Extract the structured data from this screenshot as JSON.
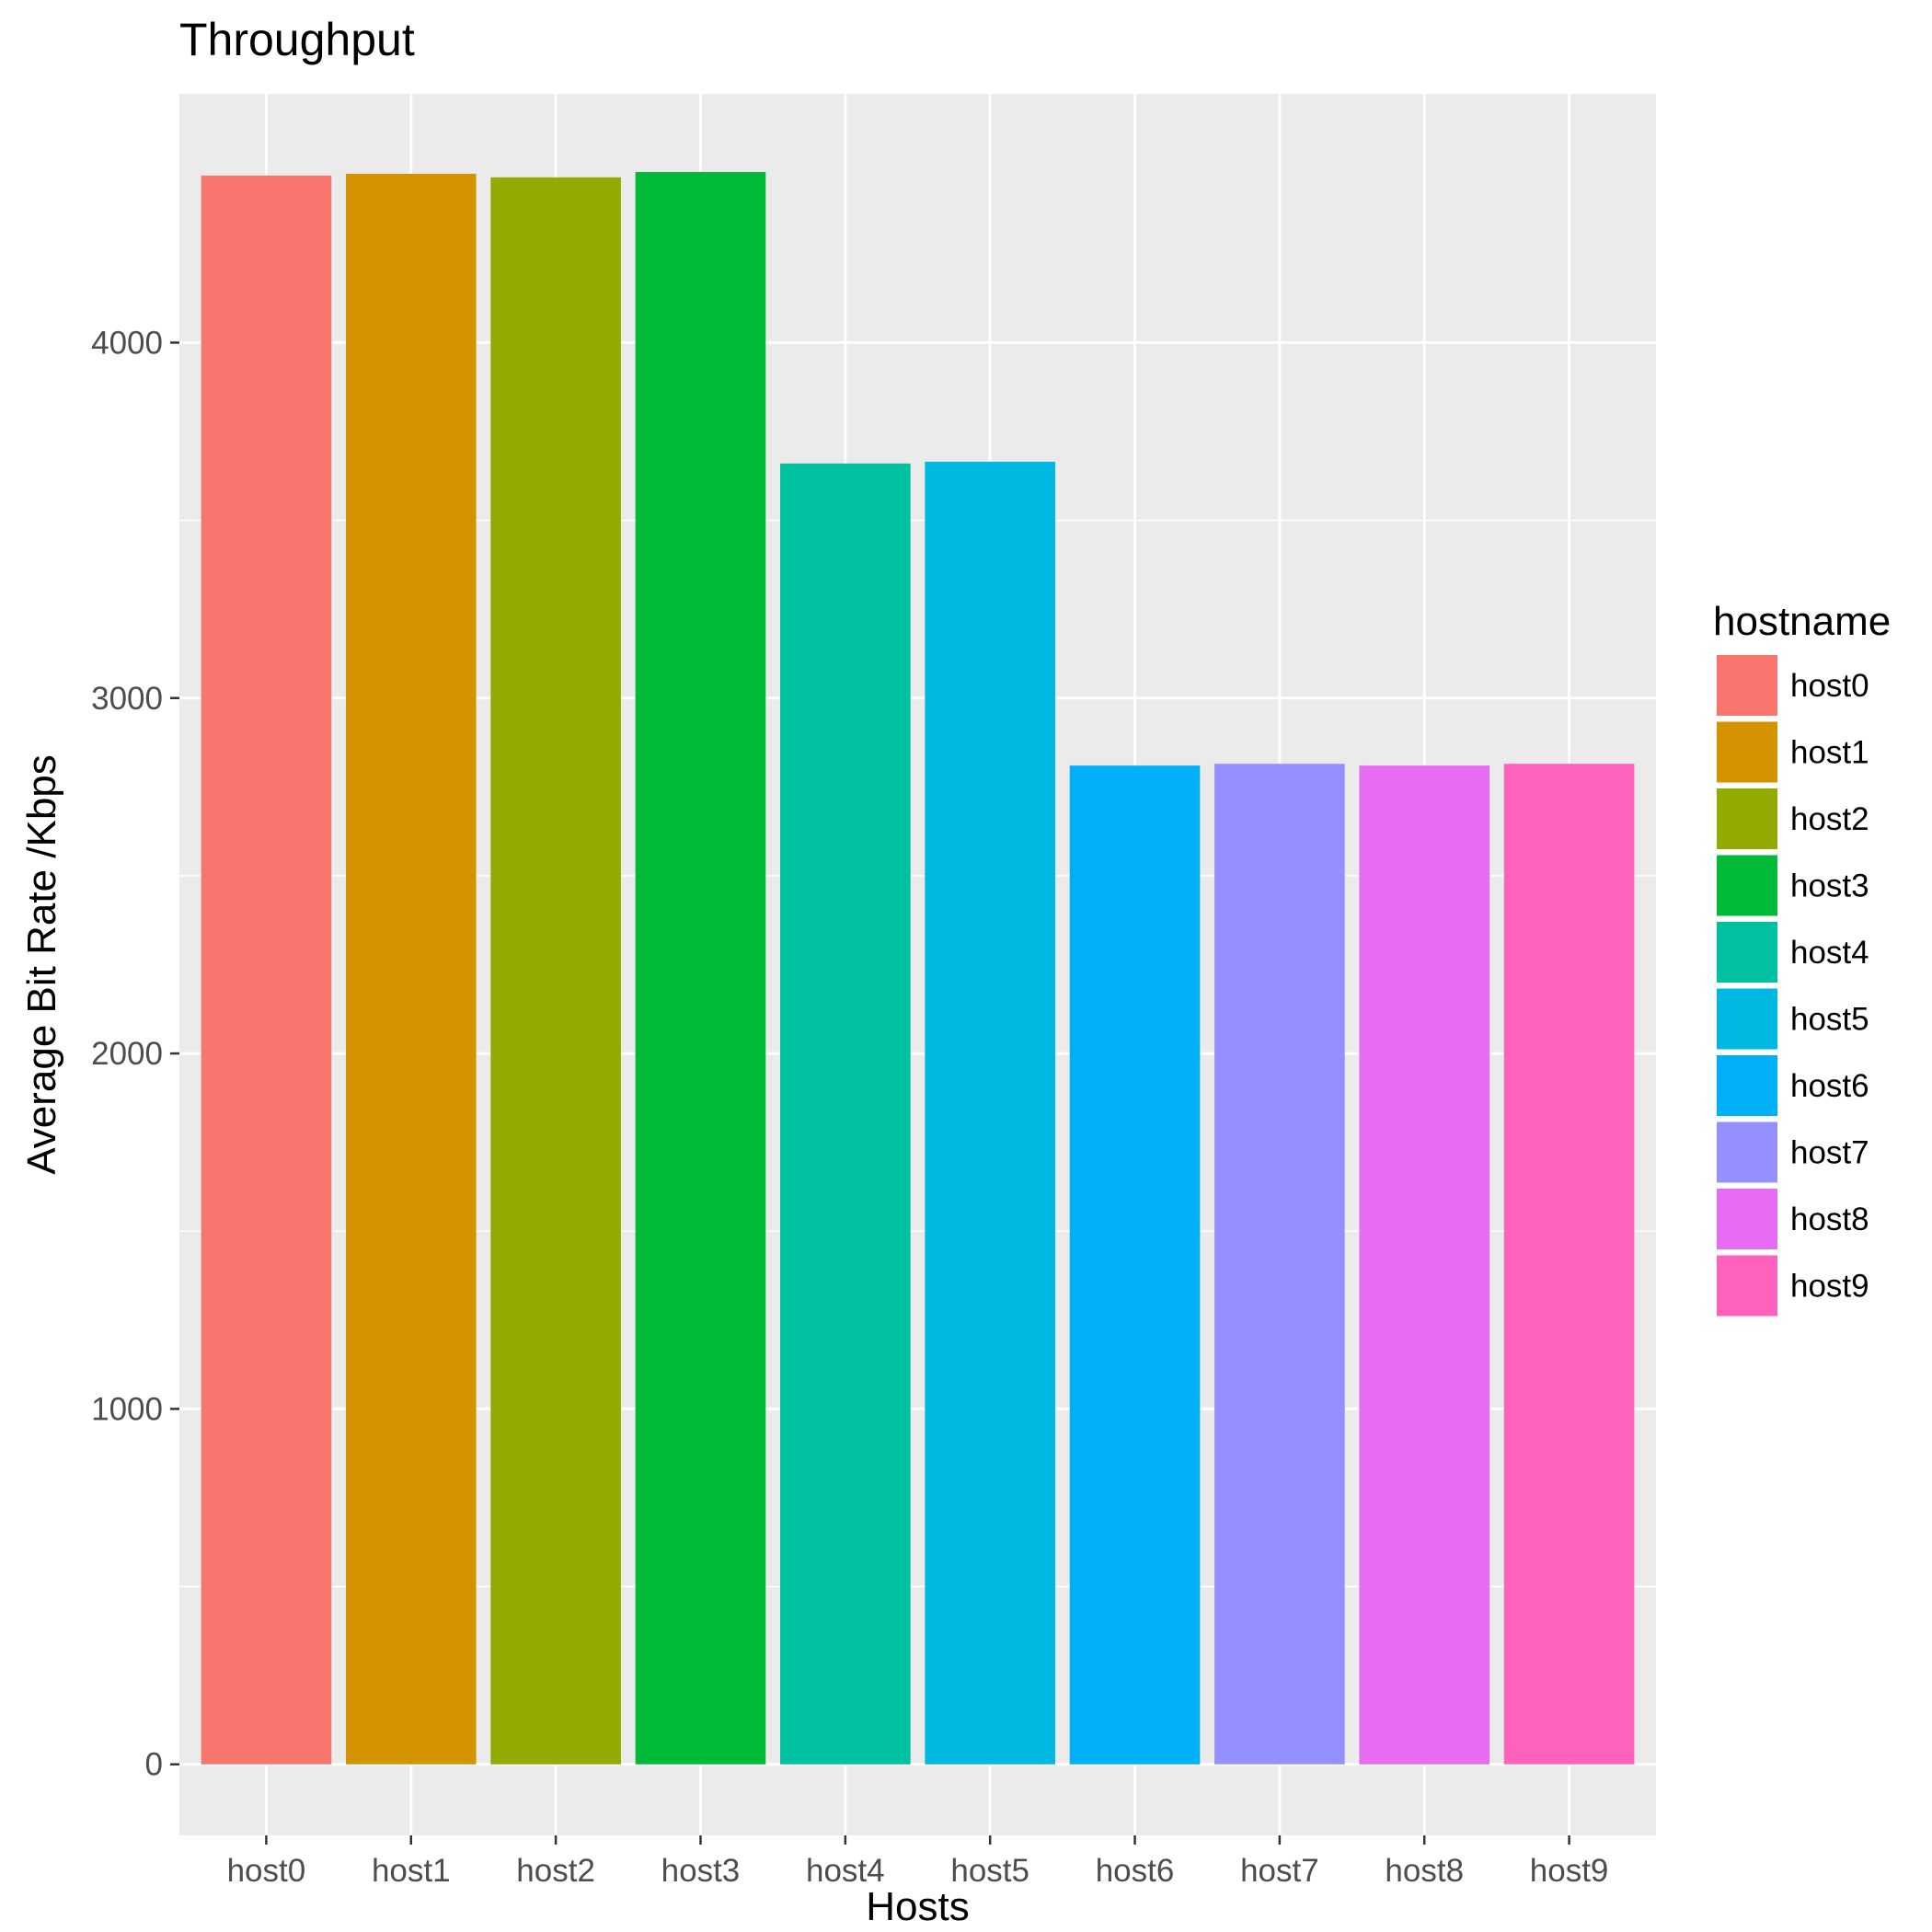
{
  "chart_data": {
    "type": "bar",
    "title": "Throughput",
    "xlabel": "Hosts",
    "ylabel": "Average Bit Rate /Kbps",
    "categories": [
      "host0",
      "host1",
      "host2",
      "host3",
      "host4",
      "host5",
      "host6",
      "host7",
      "host8",
      "host9"
    ],
    "values": [
      4470,
      4475,
      4465,
      4480,
      3660,
      3665,
      2810,
      2815,
      2810,
      2815
    ],
    "colors": [
      "#F8766D",
      "#D39200",
      "#93AA00",
      "#00BA38",
      "#00C19F",
      "#00B9E3",
      "#00B0F6",
      "#9590FF",
      "#E76BF3",
      "#FF62BC"
    ],
    "ylim": [
      -200,
      4700
    ],
    "yticks": [
      0,
      1000,
      2000,
      3000,
      4000
    ],
    "ytick_labels": [
      "0",
      "1000",
      "2000",
      "3000",
      "4000"
    ],
    "grid": true,
    "legend": {
      "title": "hostname",
      "position": "right",
      "labels": [
        "host0",
        "host1",
        "host2",
        "host3",
        "host4",
        "host5",
        "host6",
        "host7",
        "host8",
        "host9"
      ]
    }
  }
}
